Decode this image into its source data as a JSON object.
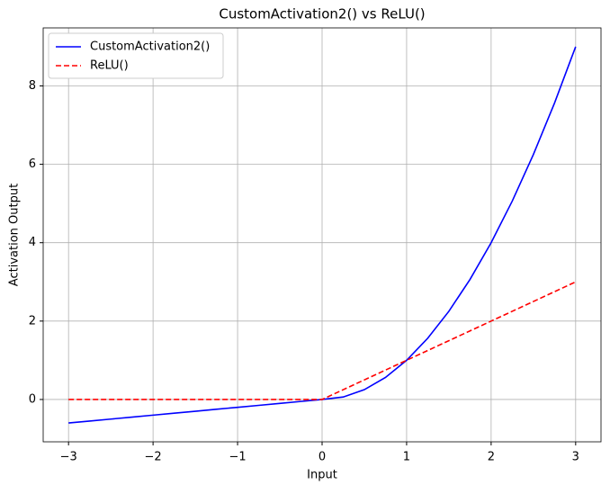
{
  "chart_data": {
    "type": "line",
    "title": "CustomActivation2() vs ReLU()",
    "x_label": "Input",
    "y_label": "Activation Output",
    "x": [
      -3,
      -2.75,
      -2.5,
      -2.25,
      -2,
      -1.75,
      -1.5,
      -1.25,
      -1,
      -0.75,
      -0.5,
      -0.25,
      0,
      0.25,
      0.5,
      0.75,
      1,
      1.25,
      1.5,
      1.75,
      2,
      2.25,
      2.5,
      2.75,
      3
    ],
    "series": [
      {
        "name": "CustomActivation2()",
        "color": "#0000ff",
        "dash": "solid",
        "values": [
          -0.6,
          -0.55,
          -0.5,
          -0.45,
          -0.4,
          -0.35,
          -0.3,
          -0.25,
          -0.2,
          -0.15,
          -0.1,
          -0.05,
          0,
          0.0625,
          0.25,
          0.5625,
          1,
          1.5625,
          2.25,
          3.0625,
          4,
          5.0625,
          6.25,
          7.5625,
          9
        ]
      },
      {
        "name": "ReLU()",
        "color": "#ff0000",
        "dash": "dashed",
        "values": [
          0,
          0,
          0,
          0,
          0,
          0,
          0,
          0,
          0,
          0,
          0,
          0,
          0,
          0.25,
          0.5,
          0.75,
          1,
          1.25,
          1.5,
          1.75,
          2,
          2.25,
          2.5,
          2.75,
          3
        ]
      }
    ],
    "xlim": [
      -3.3,
      3.3
    ],
    "ylim": [
      -1.08,
      9.48
    ],
    "xticks": [
      {
        "value": -3,
        "label": "−3"
      },
      {
        "value": -2,
        "label": "−2"
      },
      {
        "value": -1,
        "label": "−1"
      },
      0,
      1,
      2,
      3
    ],
    "yticks": [
      0,
      2,
      4,
      6,
      8
    ],
    "grid": true,
    "legend": "upper-left"
  }
}
